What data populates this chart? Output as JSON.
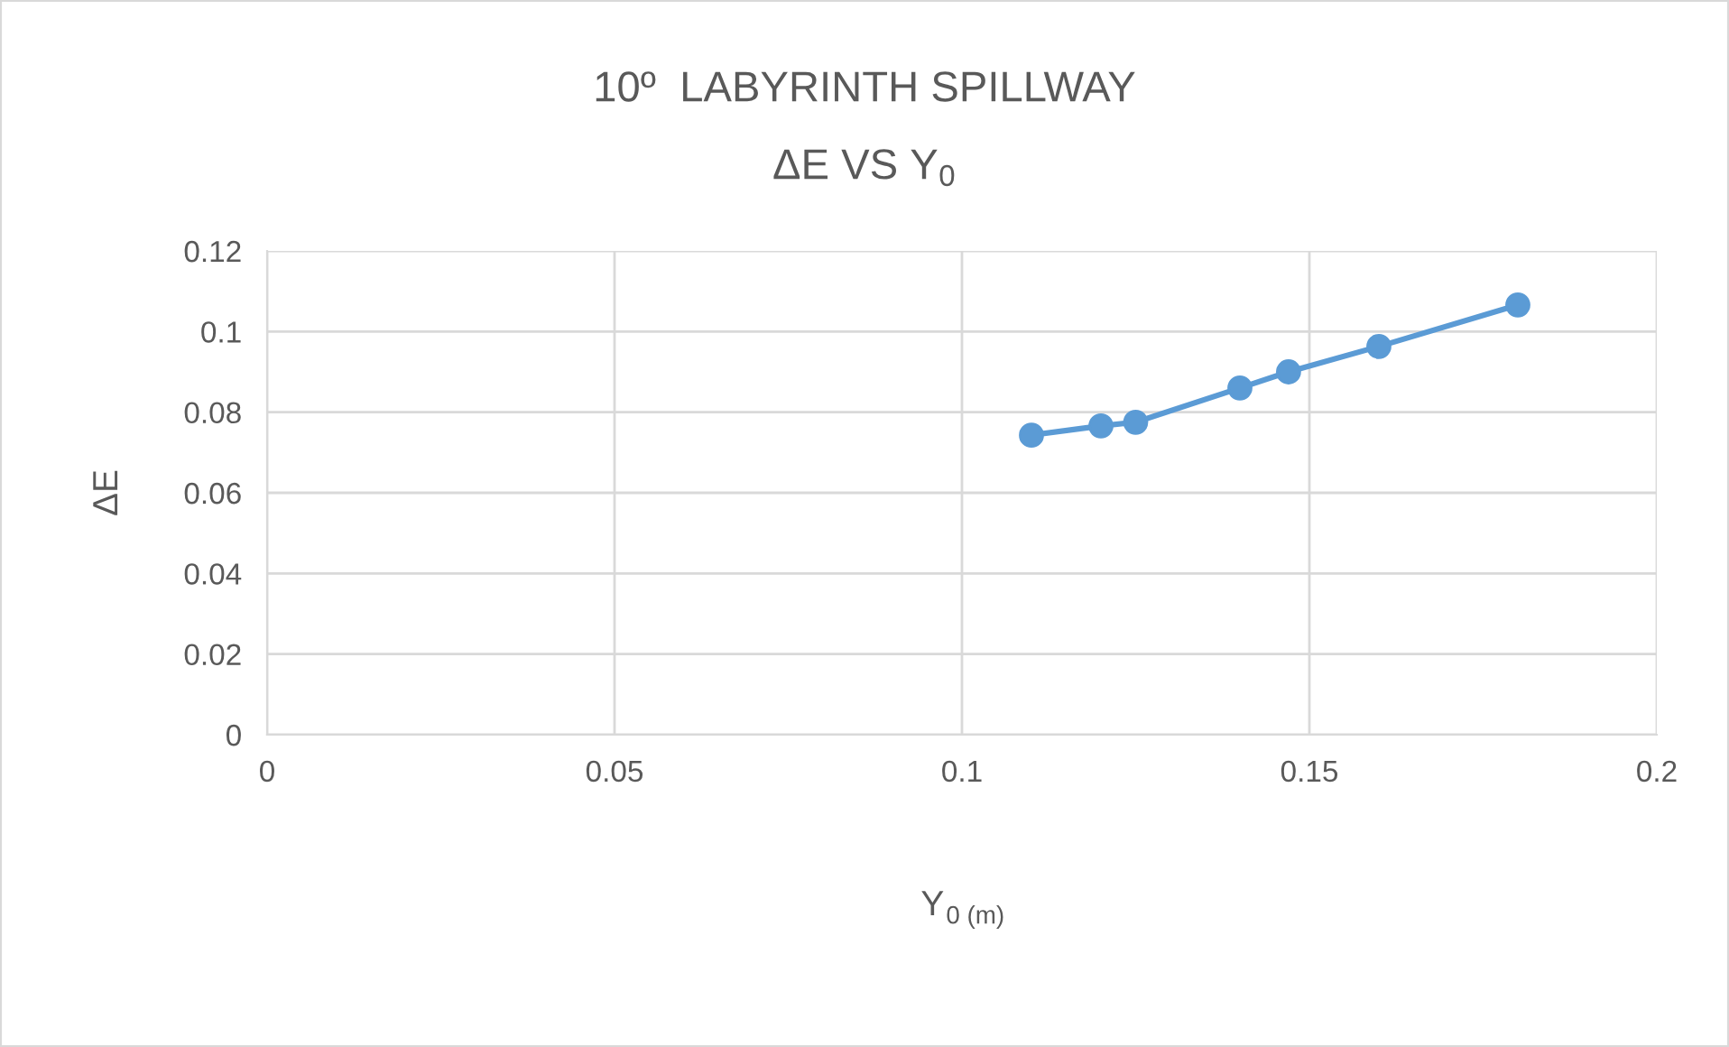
{
  "chart_data": {
    "type": "line",
    "title": "10º  LABYRINTH SPILLWAY",
    "subtitle": "ΔE VS Y$_{0}$",
    "xlabel": "Y$_{0 (m)}$",
    "ylabel": "ΔE",
    "x": [
      0.11,
      0.12,
      0.125,
      0.14,
      0.147,
      0.16,
      0.18
    ],
    "series": [
      {
        "color": "#5b9bd5",
        "values": [
          0.0743,
          0.0766,
          0.0775,
          0.086,
          0.09,
          0.0963,
          0.1066
        ]
      }
    ],
    "xlim": [
      0,
      0.2
    ],
    "xticks": [
      0,
      0.05,
      0.1,
      0.15,
      0.2
    ],
    "ylim": [
      0,
      0.12
    ],
    "yticks": [
      0,
      0.02,
      0.04,
      0.06,
      0.08,
      0.1,
      0.12
    ],
    "grid": true,
    "marker": "circle",
    "line_style": "solid",
    "legend": false
  }
}
